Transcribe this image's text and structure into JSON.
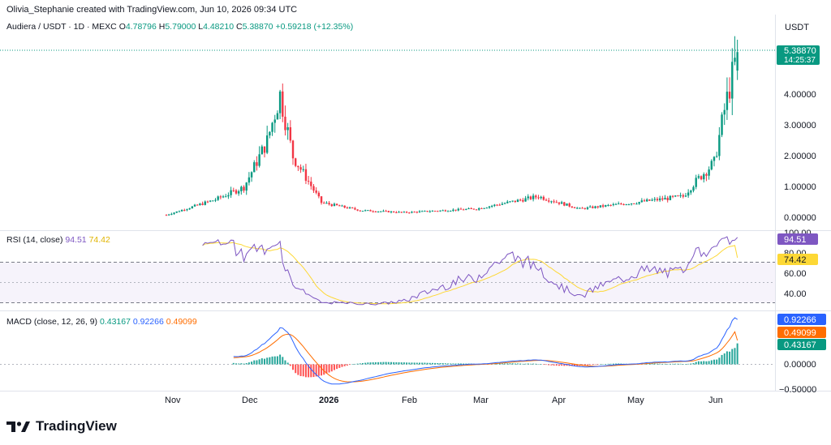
{
  "credit": "Olivia_Stephanie created with TradingView.com, Jun 10, 2026 09:34 UTC",
  "symbol_line": {
    "symbol": "Audiera / USDT · 1D · MEXC",
    "o_label": "O",
    "o": "4.78796",
    "h_label": "H",
    "h": "5.79000",
    "l_label": "L",
    "l": "4.48210",
    "c_label": "C",
    "c": "5.38870",
    "change": "+0.59218 (+12.35%)"
  },
  "quote_currency": "USDT",
  "price_badge": {
    "price": "5.38870",
    "countdown": "14:25:37"
  },
  "price_axis_ticks": [
    "0.00000",
    "1.00000",
    "2.00000",
    "3.00000",
    "4.00000"
  ],
  "rsi": {
    "label": "RSI (14, close)",
    "value": "94.51",
    "ma": "74.42",
    "axis_ticks": [
      "40.00",
      "60.00",
      "80.00",
      "100.00"
    ]
  },
  "macd": {
    "label": "MACD (close, 12, 26, 9)",
    "histogram": "0.43167",
    "macd_line": "0.92266",
    "signal": "0.49099",
    "axis_ticks": [
      "0.00000",
      "−0.50000"
    ]
  },
  "time_axis": [
    "Nov",
    "Dec",
    "2026",
    "Feb",
    "Mar",
    "Apr",
    "May",
    "Jun"
  ],
  "brand": "TradingView",
  "colors": {
    "up": "#089981",
    "down": "#f23645",
    "rsi_line": "#7e57c2",
    "rsi_ma": "#fdd835",
    "macd_line": "#2962ff",
    "signal_line": "#ff6d00",
    "badge_blue": "#2962ff",
    "badge_orange": "#ff6d00",
    "badge_teal": "#089981"
  },
  "chart_data": {
    "type": "candlestick",
    "price_keypoints": [
      [
        "2025-11-01",
        0.1
      ],
      [
        "2025-11-20",
        0.6
      ],
      [
        "2025-12-01",
        1.0
      ],
      [
        "2025-12-10",
        2.5
      ],
      [
        "2025-12-15",
        4.0
      ],
      [
        "2025-12-20",
        2.0
      ],
      [
        "2025-12-31",
        0.5
      ],
      [
        "2026-01-15",
        0.25
      ],
      [
        "2026-02-01",
        0.18
      ],
      [
        "2026-03-01",
        0.3
      ],
      [
        "2026-03-25",
        0.7
      ],
      [
        "2026-04-10",
        0.3
      ],
      [
        "2026-05-01",
        0.5
      ],
      [
        "2026-05-20",
        0.7
      ],
      [
        "2026-05-25",
        1.2
      ],
      [
        "2026-06-01",
        1.8
      ],
      [
        "2026-06-05",
        3.5
      ],
      [
        "2026-06-10",
        5.3887
      ]
    ],
    "last_candle": {
      "open": 4.78796,
      "high": 5.79,
      "low": 4.4821,
      "close": 5.3887
    },
    "rsi_last": 94.51,
    "rsi_ma_last": 74.42,
    "rsi_bands": [
      30,
      50,
      70
    ],
    "macd_last": {
      "macd": 0.92266,
      "signal": 0.49099,
      "histogram": 0.43167
    },
    "price_ylim": [
      0,
      5.5
    ]
  }
}
